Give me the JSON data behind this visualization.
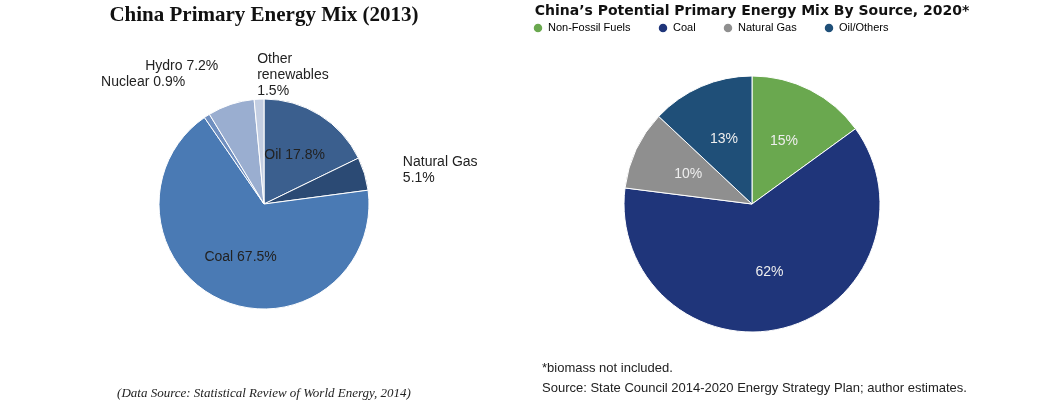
{
  "chart_data": [
    {
      "type": "pie",
      "title": "China Primary Energy Mix (2013)",
      "categories": [
        "Oil",
        "Natural Gas",
        "Coal",
        "Nuclear",
        "Hydro",
        "Other renewables"
      ],
      "values": [
        17.8,
        5.1,
        67.5,
        0.9,
        7.2,
        1.5
      ],
      "colors": [
        "#3b5f8e",
        "#2b4a74",
        "#4a7ab4",
        "#6f8fc0",
        "#9aaed0",
        "#c3cee2"
      ],
      "value_labels": [
        "17.8%",
        "5.1%",
        "67.5%",
        "0.9%",
        "7.2%",
        "1.5%"
      ],
      "legend": false,
      "annotations": [
        "(Data Source: Statistical Review of World Energy, 2014)"
      ]
    },
    {
      "type": "pie",
      "title": "China’s Potential Primary Energy Mix By Source, 2020*",
      "categories": [
        "Non-Fossil Fuels",
        "Coal",
        "Natural Gas",
        "Oil/Others"
      ],
      "values": [
        15,
        62,
        10,
        13
      ],
      "colors": [
        "#6aa84f",
        "#1f357a",
        "#8f8f8f",
        "#1f4f78"
      ],
      "value_labels": [
        "15%",
        "62%",
        "10%",
        "13%"
      ],
      "legend": "top",
      "annotations": [
        "*biomass not included.",
        "Source: State Council 2014-2020 Energy Strategy Plan; author estimates."
      ]
    }
  ]
}
